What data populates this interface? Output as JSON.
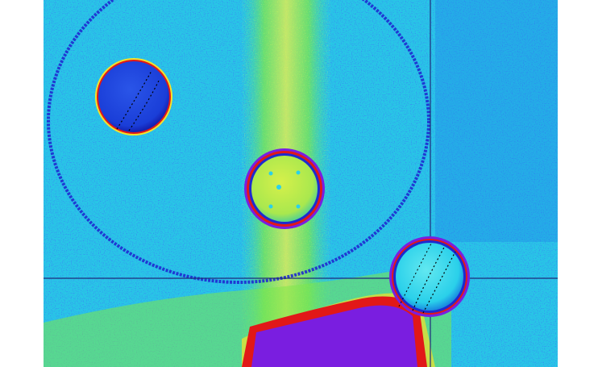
{
  "image": {
    "kind": "false-color intensity map",
    "palette": [
      "#1428e6",
      "#0a6ef0",
      "#22c8f0",
      "#3fe0a0",
      "#7ee84a",
      "#e8f04a",
      "#f5e22a",
      "#e11818",
      "#7a1ee0"
    ],
    "background": "#ffffff",
    "crosshair_color": "#1e2a7a",
    "features": [
      {
        "name": "large-ring",
        "color": "#1e2ad0"
      },
      {
        "name": "sphere-dark-blue",
        "fill": "#1a3ed8"
      },
      {
        "name": "sphere-yellow-green",
        "fill": "#b9ea4a"
      },
      {
        "name": "sphere-cyan",
        "fill": "#2ad8e8"
      },
      {
        "name": "saturated-region",
        "color": "#7a1ee0"
      }
    ]
  }
}
